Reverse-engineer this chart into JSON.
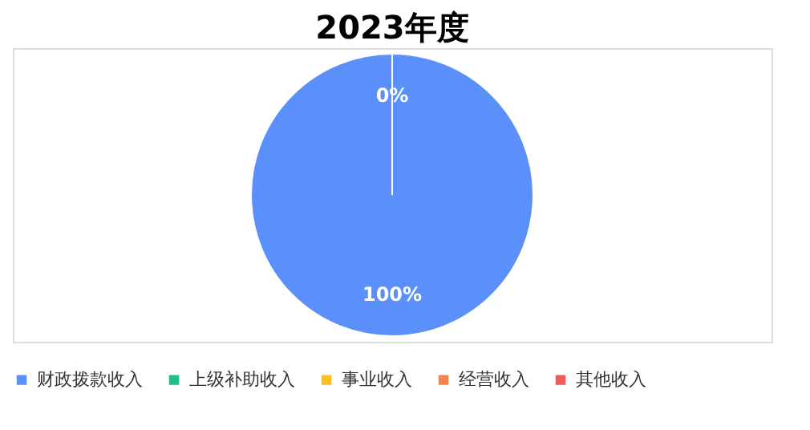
{
  "chart_data": {
    "type": "pie",
    "title": "2023年度",
    "categories": [
      "财政拨款收入",
      "上级补助收入",
      "事业收入",
      "经营收入",
      "其他收入"
    ],
    "values": [
      100,
      0,
      0,
      0,
      0
    ],
    "colors": [
      "#5b8ff9",
      "#1fc08a",
      "#fbbf24",
      "#f5844a",
      "#ef5b5b"
    ],
    "value_labels": [
      "100%",
      "0%",
      null,
      null,
      null
    ],
    "legend": "bottom"
  }
}
